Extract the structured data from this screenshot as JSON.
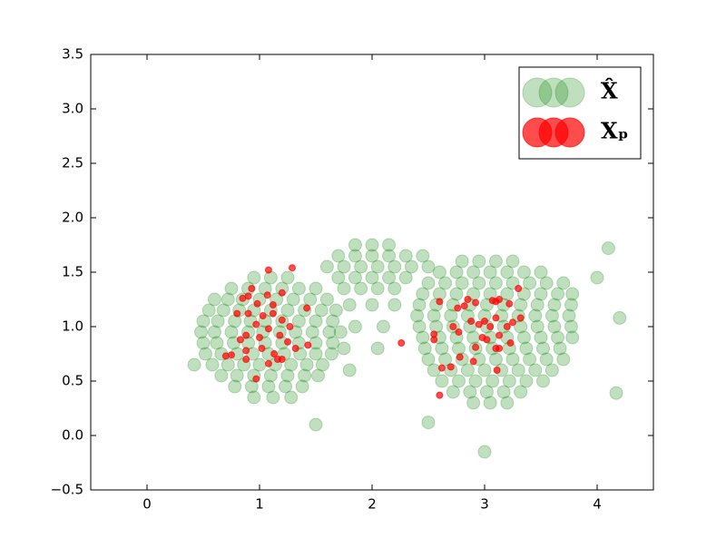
{
  "chart_data": {
    "type": "scatter",
    "xlim": [
      -0.5,
      4.5
    ],
    "ylim": [
      -0.5,
      3.5
    ],
    "xticks": [
      0,
      1,
      2,
      3,
      4
    ],
    "yticks": [
      {
        "value": -0.5,
        "label": "−0.5"
      },
      {
        "value": 0,
        "label": "0.0"
      },
      0.5,
      {
        "value": 1,
        "label": "1.0"
      },
      1.5,
      {
        "value": 2,
        "label": "2.0"
      },
      2.5,
      {
        "value": 3,
        "label": "3.0"
      },
      3.5
    ],
    "legend": "upper right",
    "series": [
      {
        "name": "X̂",
        "color": "#008000",
        "alpha": 0.25,
        "x": [
          0.95,
          1.1,
          1.25,
          0.75,
          0.9,
          1.05,
          1.2,
          1.35,
          1.5,
          0.6,
          0.72,
          0.85,
          1.0,
          1.15,
          1.3,
          1.45,
          1.6,
          0.55,
          0.68,
          0.82,
          0.95,
          1.1,
          1.25,
          1.4,
          1.55,
          1.68,
          0.5,
          0.63,
          0.78,
          0.92,
          1.05,
          1.2,
          1.35,
          1.5,
          1.65,
          0.48,
          0.6,
          0.75,
          0.9,
          1.03,
          1.18,
          1.32,
          1.47,
          1.62,
          1.72,
          0.5,
          0.62,
          0.77,
          0.9,
          1.05,
          1.2,
          1.35,
          1.5,
          1.65,
          0.52,
          0.66,
          0.8,
          0.94,
          1.08,
          1.22,
          1.36,
          1.5,
          1.64,
          0.58,
          0.72,
          0.86,
          1.0,
          1.14,
          1.28,
          1.42,
          1.56,
          0.66,
          0.8,
          0.95,
          1.1,
          1.25,
          1.4,
          1.52,
          0.78,
          0.93,
          1.08,
          1.23,
          1.38,
          0.95,
          1.12,
          1.28,
          1.85,
          2.0,
          2.15,
          1.7,
          1.85,
          2.0,
          2.15,
          2.3,
          2.45,
          1.6,
          1.75,
          1.9,
          2.05,
          2.2,
          2.35,
          2.5,
          1.7,
          1.85,
          2.0,
          2.15,
          2.3,
          1.75,
          1.9,
          2.05,
          2.2,
          1.8,
          2.0,
          2.2,
          1.85,
          2.1,
          1.75,
          2.05,
          1.8,
          2.8,
          2.95,
          3.1,
          3.25,
          2.6,
          2.75,
          2.9,
          3.05,
          3.2,
          3.35,
          3.5,
          2.5,
          2.65,
          2.8,
          2.95,
          3.1,
          3.25,
          3.4,
          3.55,
          3.7,
          2.45,
          2.6,
          2.75,
          2.9,
          3.05,
          3.2,
          3.35,
          3.5,
          3.65,
          3.78,
          2.42,
          2.57,
          2.72,
          2.87,
          3.02,
          3.17,
          3.32,
          3.47,
          3.62,
          3.77,
          2.4,
          2.55,
          2.7,
          2.85,
          3.0,
          3.15,
          3.3,
          3.45,
          3.6,
          3.75,
          2.42,
          2.57,
          2.72,
          2.87,
          3.02,
          3.17,
          3.32,
          3.47,
          3.62,
          3.77,
          2.45,
          2.6,
          2.75,
          2.9,
          3.05,
          3.2,
          3.35,
          3.5,
          3.65,
          3.78,
          2.47,
          2.62,
          2.77,
          2.92,
          3.07,
          3.22,
          3.37,
          3.52,
          3.67,
          2.5,
          2.65,
          2.8,
          2.95,
          3.1,
          3.25,
          3.4,
          3.55,
          3.7,
          2.55,
          2.7,
          2.85,
          3.0,
          3.15,
          3.3,
          3.45,
          3.6,
          2.62,
          2.77,
          2.92,
          3.07,
          3.22,
          3.37,
          3.52,
          2.72,
          2.87,
          3.02,
          3.17,
          3.32,
          2.9,
          3.05,
          3.2,
          4.1,
          4.2,
          4.17,
          3.0,
          2.5,
          1.5,
          4.0,
          0.42
        ],
        "y": [
          1.45,
          1.45,
          1.45,
          1.35,
          1.35,
          1.35,
          1.35,
          1.35,
          1.35,
          1.25,
          1.25,
          1.25,
          1.25,
          1.25,
          1.25,
          1.25,
          1.25,
          1.15,
          1.15,
          1.15,
          1.15,
          1.15,
          1.15,
          1.15,
          1.15,
          1.15,
          1.05,
          1.05,
          1.05,
          1.05,
          1.05,
          1.05,
          1.05,
          1.05,
          1.05,
          0.95,
          0.95,
          0.95,
          0.95,
          0.95,
          0.95,
          0.95,
          0.95,
          0.95,
          0.95,
          0.85,
          0.85,
          0.85,
          0.85,
          0.85,
          0.85,
          0.85,
          0.85,
          0.85,
          0.75,
          0.75,
          0.75,
          0.75,
          0.75,
          0.75,
          0.75,
          0.75,
          0.75,
          0.65,
          0.65,
          0.65,
          0.65,
          0.65,
          0.65,
          0.65,
          0.65,
          0.55,
          0.55,
          0.55,
          0.55,
          0.55,
          0.55,
          0.55,
          0.45,
          0.45,
          0.45,
          0.45,
          0.45,
          0.35,
          0.35,
          0.35,
          1.75,
          1.75,
          1.75,
          1.65,
          1.65,
          1.65,
          1.65,
          1.65,
          1.65,
          1.55,
          1.55,
          1.55,
          1.55,
          1.55,
          1.55,
          1.55,
          1.45,
          1.45,
          1.45,
          1.45,
          1.45,
          1.35,
          1.35,
          1.35,
          1.35,
          1.2,
          1.2,
          1.2,
          1.0,
          1.0,
          0.8,
          0.8,
          0.6,
          1.6,
          1.6,
          1.6,
          1.6,
          1.5,
          1.5,
          1.5,
          1.5,
          1.5,
          1.5,
          1.5,
          1.4,
          1.4,
          1.4,
          1.4,
          1.4,
          1.4,
          1.4,
          1.4,
          1.4,
          1.3,
          1.3,
          1.3,
          1.3,
          1.3,
          1.3,
          1.3,
          1.3,
          1.3,
          1.3,
          1.2,
          1.2,
          1.2,
          1.2,
          1.2,
          1.2,
          1.2,
          1.2,
          1.2,
          1.2,
          1.1,
          1.1,
          1.1,
          1.1,
          1.1,
          1.1,
          1.1,
          1.1,
          1.1,
          1.1,
          1.0,
          1.0,
          1.0,
          1.0,
          1.0,
          1.0,
          1.0,
          1.0,
          1.0,
          1.0,
          0.9,
          0.9,
          0.9,
          0.9,
          0.9,
          0.9,
          0.9,
          0.9,
          0.9,
          0.9,
          0.8,
          0.8,
          0.8,
          0.8,
          0.8,
          0.8,
          0.8,
          0.8,
          0.8,
          0.7,
          0.7,
          0.7,
          0.7,
          0.7,
          0.7,
          0.7,
          0.7,
          0.7,
          0.6,
          0.6,
          0.6,
          0.6,
          0.6,
          0.6,
          0.6,
          0.6,
          0.5,
          0.5,
          0.5,
          0.5,
          0.5,
          0.5,
          0.5,
          0.4,
          0.4,
          0.4,
          0.4,
          0.4,
          0.3,
          0.3,
          0.3,
          1.72,
          1.08,
          0.39,
          -0.15,
          0.12,
          0.1,
          1.45,
          0.65
        ]
      },
      {
        "name": "Xₚ",
        "color": "#ff0000",
        "alpha": 0.7,
        "x": [
          1.08,
          1.29,
          0.93,
          1.2,
          0.85,
          0.9,
          1.07,
          0.98,
          1.12,
          0.8,
          0.9,
          1.03,
          1.12,
          1.2,
          1.27,
          0.97,
          1.08,
          1.42,
          0.88,
          1.0,
          1.18,
          1.25,
          1.43,
          0.83,
          1.02,
          1.13,
          1.2,
          0.88,
          1.32,
          1.08,
          0.75,
          0.7,
          0.88,
          0.97,
          1.16,
          2.26,
          2.6,
          2.76,
          2.85,
          2.92,
          3.07,
          3.1,
          3.13,
          3.3,
          3.22,
          2.72,
          2.88,
          2.95,
          3.0,
          3.05,
          3.1,
          3.2,
          3.32,
          3.25,
          2.55,
          2.77,
          2.98,
          3.02,
          3.13,
          2.55,
          2.92,
          3.1,
          3.13,
          3.23,
          2.62,
          2.7,
          2.78,
          2.9,
          3.11,
          2.6,
          2.82
        ],
        "y": [
          1.52,
          1.54,
          1.35,
          1.31,
          1.26,
          1.28,
          1.29,
          1.21,
          1.2,
          1.12,
          1.12,
          1.1,
          1.12,
          1.06,
          1.0,
          1.02,
          0.98,
          1.17,
          0.92,
          0.9,
          0.92,
          0.86,
          0.83,
          0.88,
          0.8,
          0.75,
          0.7,
          0.78,
          0.8,
          0.66,
          0.74,
          0.73,
          0.7,
          0.52,
          0.7,
          0.85,
          1.23,
          1.17,
          1.25,
          1.22,
          1.24,
          1.23,
          1.25,
          1.35,
          1.21,
          1.0,
          1.05,
          1.02,
          1.05,
          1.0,
          1.08,
          1.0,
          1.08,
          1.04,
          0.93,
          0.95,
          0.9,
          0.88,
          0.92,
          0.88,
          0.81,
          0.8,
          0.8,
          0.85,
          0.62,
          0.63,
          0.72,
          0.68,
          0.6,
          0.37,
          1.19
        ]
      }
    ]
  }
}
